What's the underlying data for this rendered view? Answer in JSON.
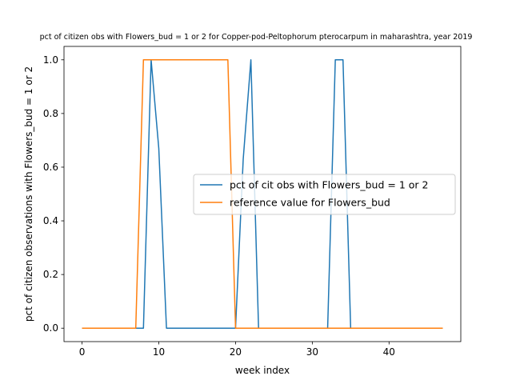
{
  "chart_data": {
    "type": "line",
    "title": "pct of citizen obs with Flowers_bud = 1 or 2 for Copper-pod-Peltophorum pterocarpum in maharashtra, year 2019",
    "xlabel": "week index",
    "ylabel": "pct of citizen observations with Flowers_bud = 1 or 2",
    "xlim": [
      -2.35,
      49.35
    ],
    "ylim": [
      -0.05,
      1.05
    ],
    "x_ticks": [
      0,
      10,
      20,
      30,
      40
    ],
    "y_ticks": [
      0.0,
      0.2,
      0.4,
      0.6,
      0.8,
      1.0
    ],
    "x_tick_labels": [
      "0",
      "10",
      "20",
      "30",
      "40"
    ],
    "y_tick_labels": [
      "0.0",
      "0.2",
      "0.4",
      "0.6",
      "0.8",
      "1.0"
    ],
    "grid": false,
    "legend_position": "center-right",
    "series": [
      {
        "name": "pct of cit obs with Flowers_bud = 1 or 2",
        "color": "#1f77b4",
        "x": [
          0,
          1,
          2,
          3,
          4,
          5,
          6,
          7,
          8,
          9,
          10,
          11,
          12,
          13,
          14,
          15,
          16,
          17,
          18,
          19,
          20,
          21,
          22,
          23,
          24,
          25,
          26,
          27,
          28,
          29,
          30,
          31,
          32,
          33,
          34,
          35,
          36,
          37,
          38,
          39,
          40,
          41,
          42,
          43,
          44,
          45,
          46,
          47
        ],
        "y": [
          0,
          0,
          0,
          0,
          0,
          0,
          0,
          0,
          0,
          1.0,
          0.67,
          0,
          0,
          0,
          0,
          0,
          0,
          0,
          0,
          0,
          0,
          0.63,
          1.0,
          0,
          0,
          0,
          0,
          0,
          0,
          0,
          0,
          0,
          0,
          1.0,
          1.0,
          0,
          0,
          0,
          0,
          0,
          0,
          0,
          0,
          0,
          0,
          0,
          0,
          0
        ]
      },
      {
        "name": "reference value for Flowers_bud",
        "color": "#ff7f0e",
        "x": [
          0,
          1,
          2,
          3,
          4,
          5,
          6,
          7,
          8,
          9,
          10,
          11,
          12,
          13,
          14,
          15,
          16,
          17,
          18,
          19,
          20,
          21,
          22,
          23,
          24,
          25,
          26,
          27,
          28,
          29,
          30,
          31,
          32,
          33,
          34,
          35,
          36,
          37,
          38,
          39,
          40,
          41,
          42,
          43,
          44,
          45,
          46,
          47
        ],
        "y": [
          0,
          0,
          0,
          0,
          0,
          0,
          0,
          0,
          1,
          1,
          1,
          1,
          1,
          1,
          1,
          1,
          1,
          1,
          1,
          1,
          0,
          0,
          0,
          0,
          0,
          0,
          0,
          0,
          0,
          0,
          0,
          0,
          0,
          0,
          0,
          0,
          0,
          0,
          0,
          0,
          0,
          0,
          0,
          0,
          0,
          0,
          0,
          0
        ]
      }
    ]
  }
}
